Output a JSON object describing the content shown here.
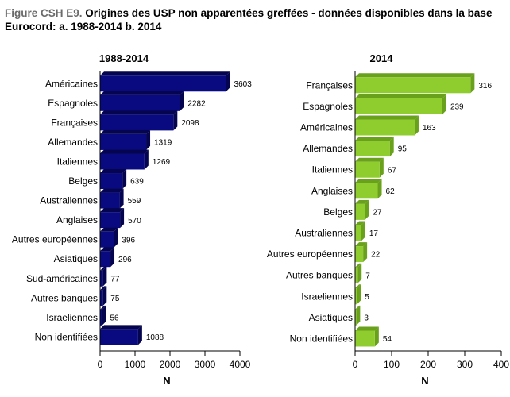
{
  "figure": {
    "prefix": "Figure CSH E9.",
    "title": "Origines des USP non apparentées greffées - données disponibles dans la base Eurocord:  a. 1988-2014  b. 2014"
  },
  "colors": {
    "panel_a_bar": "#0a0a80",
    "panel_a_side": "#05054f",
    "panel_b_bar": "#8fcc2e",
    "panel_b_side": "#6aa11c"
  },
  "chart_data": [
    {
      "type": "bar",
      "orientation": "horizontal",
      "title": "1988-2014",
      "xlabel": "N",
      "xlim": [
        0,
        4000
      ],
      "xticks": [
        0,
        1000,
        2000,
        3000,
        4000
      ],
      "grid": false,
      "categories": [
        "Américaines",
        "Espagnoles",
        "Françaises",
        "Allemandes",
        "Italiennes",
        "Belges",
        "Australiennes",
        "Anglaises",
        "Autres européennes",
        "Asiatiques",
        "Sud-américaines",
        "Autres banques",
        "Israeliennes",
        "Non identifiées"
      ],
      "values": [
        3603,
        2282,
        2098,
        1319,
        1269,
        639,
        559,
        570,
        396,
        296,
        77,
        75,
        56,
        1088
      ]
    },
    {
      "type": "bar",
      "orientation": "horizontal",
      "title": "2014",
      "xlabel": "N",
      "xlim": [
        0,
        400
      ],
      "xticks": [
        0,
        100,
        200,
        300,
        400
      ],
      "grid": false,
      "categories": [
        "Françaises",
        "Espagnoles",
        "Américaines",
        "Allemandes",
        "Italiennes",
        "Anglaises",
        "Belges",
        "Australiennes",
        "Autres européennes",
        "Autres banques",
        "Israeliennes",
        "Asiatiques",
        "Non identifiées"
      ],
      "values": [
        316,
        239,
        163,
        95,
        67,
        62,
        27,
        17,
        22,
        7,
        5,
        3,
        54
      ]
    }
  ]
}
